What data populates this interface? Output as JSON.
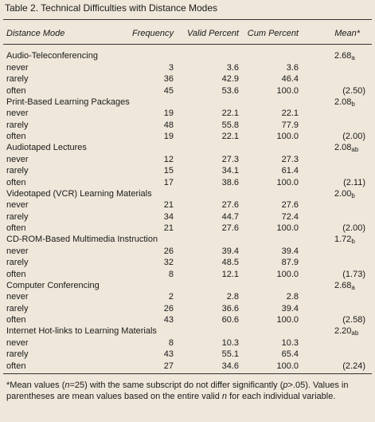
{
  "title": "Table 2. Technical Difficulties with Distance Modes",
  "columns": [
    "Distance Mode",
    "Frequency",
    "Valid Percent",
    "Cum Percent",
    "Mean*"
  ],
  "groups": [
    {
      "name": "Audio-Teleconferencing",
      "mean": {
        "value": "2.68",
        "sub": "a"
      },
      "rows": [
        {
          "label": "never",
          "frequency": "3",
          "valid_percent": "3.6",
          "cum_percent": "3.6"
        },
        {
          "label": "rarely",
          "frequency": "36",
          "valid_percent": "42.9",
          "cum_percent": "46.4"
        },
        {
          "label": "often",
          "frequency": "45",
          "valid_percent": "53.6",
          "cum_percent": "100.0",
          "mean": "(2.50)"
        }
      ]
    },
    {
      "name": "Print-Based Learning Packages",
      "mean": {
        "value": "2.08",
        "sub": "b"
      },
      "rows": [
        {
          "label": "never",
          "frequency": "19",
          "valid_percent": "22.1",
          "cum_percent": "22.1"
        },
        {
          "label": "rarely",
          "frequency": "48",
          "valid_percent": "55.8",
          "cum_percent": "77.9"
        },
        {
          "label": "often",
          "frequency": "19",
          "valid_percent": "22.1",
          "cum_percent": "100.0",
          "mean": "(2.00)"
        }
      ]
    },
    {
      "name": "Audiotaped Lectures",
      "mean": {
        "value": "2.08",
        "sub": "ab"
      },
      "rows": [
        {
          "label": "never",
          "frequency": "12",
          "valid_percent": "27.3",
          "cum_percent": "27.3"
        },
        {
          "label": "rarely",
          "frequency": "15",
          "valid_percent": "34.1",
          "cum_percent": "61.4"
        },
        {
          "label": "often",
          "frequency": "17",
          "valid_percent": "38.6",
          "cum_percent": "100.0",
          "mean": "(2.11)"
        }
      ]
    },
    {
      "name": "Videotaped (VCR) Learning Materials",
      "mean": {
        "value": "2.00",
        "sub": "b"
      },
      "rows": [
        {
          "label": "never",
          "frequency": "21",
          "valid_percent": "27.6",
          "cum_percent": "27.6"
        },
        {
          "label": "rarely",
          "frequency": "34",
          "valid_percent": "44.7",
          "cum_percent": "72.4"
        },
        {
          "label": "often",
          "frequency": "21",
          "valid_percent": "27.6",
          "cum_percent": "100.0",
          "mean": "(2.00)"
        }
      ]
    },
    {
      "name": "CD-ROM-Based Multimedia Instruction",
      "mean": {
        "value": "1.72",
        "sub": "b"
      },
      "rows": [
        {
          "label": "never",
          "frequency": "26",
          "valid_percent": "39.4",
          "cum_percent": "39.4"
        },
        {
          "label": "rarely",
          "frequency": "32",
          "valid_percent": "48.5",
          "cum_percent": "87.9"
        },
        {
          "label": "often",
          "frequency": "8",
          "valid_percent": "12.1",
          "cum_percent": "100.0",
          "mean": "(1.73)"
        }
      ]
    },
    {
      "name": "Computer Conferencing",
      "mean": {
        "value": "2.68",
        "sub": "a"
      },
      "rows": [
        {
          "label": "never",
          "frequency": "2",
          "valid_percent": "2.8",
          "cum_percent": "2.8"
        },
        {
          "label": "rarely",
          "frequency": "26",
          "valid_percent": "36.6",
          "cum_percent": "39.4"
        },
        {
          "label": "often",
          "frequency": "43",
          "valid_percent": "60.6",
          "cum_percent": "100.0",
          "mean": "(2.58)"
        }
      ]
    },
    {
      "name": "Internet Hot-links to Learning Materials",
      "mean": {
        "value": "2.20",
        "sub": "ab"
      },
      "rows": [
        {
          "label": "never",
          "frequency": "8",
          "valid_percent": "10.3",
          "cum_percent": "10.3"
        },
        {
          "label": "rarely",
          "frequency": "43",
          "valid_percent": "55.1",
          "cum_percent": "65.4"
        },
        {
          "label": "often",
          "frequency": "27",
          "valid_percent": "34.6",
          "cum_percent": "100.0",
          "mean": "(2.24)"
        }
      ]
    }
  ],
  "footnote": [
    {
      "text": "*Mean values ("
    },
    {
      "text": "n",
      "italic": true
    },
    {
      "text": "=25) with the same subscript do not differ significantly ("
    },
    {
      "text": "p",
      "italic": true
    },
    {
      "text": ">.05). Values in parentheses are mean values based on the entire valid "
    },
    {
      "text": "n",
      "italic": true
    },
    {
      "text": " for each individual variable."
    }
  ]
}
